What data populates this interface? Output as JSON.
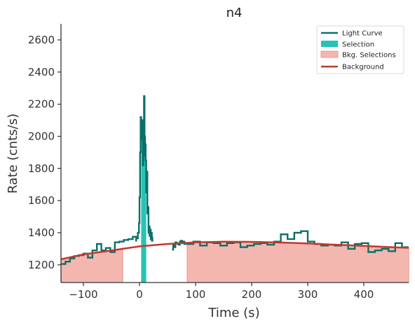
{
  "chart_data": {
    "type": "line",
    "title": "n4",
    "xlabel": "Time (s)",
    "ylabel": "Rate (cnts/s)",
    "xlim": [
      -140,
      480
    ],
    "ylim": [
      1090,
      2700
    ],
    "xticks": [
      -100,
      0,
      100,
      200,
      300,
      400
    ],
    "yticks": [
      1200,
      1400,
      1600,
      1800,
      2000,
      2200,
      2400,
      2600
    ],
    "xtick_labels": [
      "−100",
      "0",
      "100",
      "200",
      "300",
      "400"
    ],
    "ytick_labels": [
      "1200",
      "1400",
      "1600",
      "1800",
      "2000",
      "2200",
      "2400",
      "2600"
    ],
    "legend_position": "top-right",
    "legend": [
      {
        "label": "Light Curve",
        "kind": "line",
        "color": "#0b7068"
      },
      {
        "label": "Selection",
        "kind": "patch",
        "color": "#26c3b5"
      },
      {
        "label": "Bkg. Selections",
        "kind": "patch",
        "color": "#f4b7b0",
        "edge": "#e88880"
      },
      {
        "label": "Background",
        "kind": "line",
        "color": "#c1392b"
      }
    ],
    "colors": {
      "light_curve": "#0b7068",
      "selection": "#26c3b5",
      "bkg_fill": "#f4b7b0",
      "bkg_edge": "#ee8f86",
      "background": "#c1392b"
    },
    "series": [
      {
        "name": "Light Curve",
        "step": "post",
        "segments": [
          {
            "x": [
              -140,
              -132,
              -124,
              -116,
              -108,
              -100,
              -92,
              -84,
              -76,
              -68,
              -60,
              -52,
              -44,
              -36,
              -28,
              -20,
              -12,
              -6
            ],
            "y": [
              1205,
              1220,
              1240,
              1255,
              1260,
              1270,
              1245,
              1290,
              1330,
              1290,
              1305,
              1280,
              1340,
              1345,
              1355,
              1360,
              1375,
              1345
            ]
          },
          {
            "x": [
              -5,
              -3,
              -1,
              0,
              1,
              2,
              3,
              4,
              5,
              6,
              7,
              8,
              9,
              10,
              11,
              12,
              13,
              14,
              15,
              16,
              17,
              18,
              19,
              20,
              21,
              22,
              23
            ],
            "y": [
              1365,
              1400,
              1460,
              1620,
              1900,
              2120,
              2050,
              1980,
              2100,
              1820,
              1880,
              2250,
              2000,
              1950,
              1850,
              1650,
              1780,
              1520,
              1560,
              1400,
              1440,
              1380,
              1420,
              1360,
              1400,
              1350,
              1375
            ]
          },
          {
            "x": [
              58,
              60,
              62,
              64,
              66,
              68,
              70,
              72,
              74,
              76,
              78,
              80,
              84
            ],
            "y": [
              1295,
              1330,
              1310,
              1340,
              1335,
              1330,
              1325,
              1345,
              1350,
              1340,
              1345,
              1330,
              1330
            ]
          },
          {
            "x": [
              84,
              96,
              108,
              120,
              132,
              144,
              156,
              168,
              180,
              192,
              204,
              216,
              228,
              240,
              252,
              264,
              276,
              288,
              300,
              312,
              324,
              336,
              348,
              360,
              372,
              384,
              396,
              408,
              420,
              432,
              444,
              456,
              468,
              480
            ],
            "y": [
              1330,
              1345,
              1320,
              1340,
              1335,
              1320,
              1335,
              1340,
              1310,
              1320,
              1330,
              1335,
              1325,
              1345,
              1390,
              1360,
              1400,
              1410,
              1345,
              1330,
              1320,
              1325,
              1320,
              1340,
              1300,
              1330,
              1335,
              1280,
              1290,
              1300,
              1285,
              1335,
              1310,
              1310
            ]
          }
        ]
      },
      {
        "name": "Background",
        "x": [
          -140,
          -100,
          -50,
          0,
          50,
          100,
          150,
          200,
          250,
          300,
          350,
          400,
          450,
          480
        ],
        "y": [
          1235,
          1265,
          1290,
          1315,
          1330,
          1340,
          1344,
          1343,
          1339,
          1333,
          1325,
          1318,
          1310,
          1306
        ]
      }
    ],
    "selection_interval": [
      3,
      12
    ],
    "bkg_intervals": [
      [
        -140,
        -30
      ],
      [
        85,
        480
      ]
    ]
  }
}
